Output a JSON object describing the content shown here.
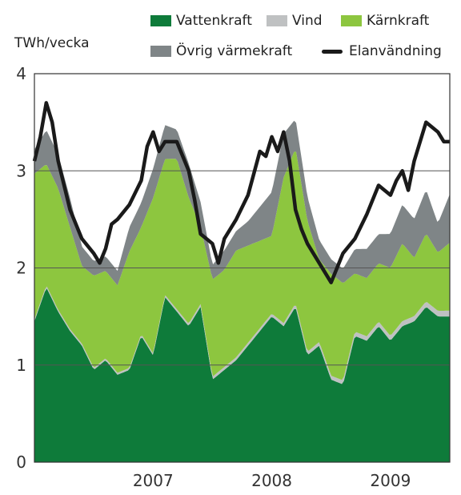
{
  "chart_data": {
    "type": "area",
    "ylabel": "TWh/vecka",
    "ylim": [
      0,
      4
    ],
    "yticks": [
      0,
      1,
      2,
      3,
      4
    ],
    "xlim": [
      2006.5,
      2010.0
    ],
    "xtick_labels": [
      {
        "x": 2007.0,
        "label": "2007"
      },
      {
        "x": 2008.0,
        "label": "2008"
      },
      {
        "x": 2009.0,
        "label": "2009"
      }
    ],
    "grid": "horizontal",
    "legend_position": "top",
    "series": [
      {
        "name": "Vattenkraft",
        "color": "#0e7b3a",
        "kind": "stacked-area",
        "x": [
          2006.5,
          2006.6,
          2006.7,
          2006.8,
          2006.9,
          2007.0,
          2007.1,
          2007.2,
          2007.3,
          2007.4,
          2007.5,
          2007.6,
          2007.7,
          2007.8,
          2007.9,
          2008.0,
          2008.1,
          2008.2,
          2008.3,
          2008.4,
          2008.5,
          2008.6,
          2008.7,
          2008.8,
          2008.9,
          2009.0,
          2009.1,
          2009.2,
          2009.3,
          2009.4,
          2009.5,
          2009.6,
          2009.7,
          2009.8,
          2009.9,
          2010.0
        ],
        "values": [
          1.45,
          1.8,
          1.55,
          1.35,
          1.2,
          0.95,
          1.05,
          0.9,
          0.95,
          1.3,
          1.1,
          1.7,
          1.55,
          1.4,
          1.6,
          0.85,
          0.95,
          1.05,
          1.2,
          1.35,
          1.5,
          1.4,
          1.6,
          1.1,
          1.2,
          0.85,
          0.8,
          1.3,
          1.25,
          1.4,
          1.25,
          1.4,
          1.45,
          1.6,
          1.5,
          1.5
        ]
      },
      {
        "name": "Vind",
        "color": "#bfc1c2",
        "kind": "stacked-area",
        "x": [
          2006.5,
          2007.0,
          2007.5,
          2008.0,
          2008.5,
          2009.0,
          2009.5,
          2010.0
        ],
        "values": [
          0.02,
          0.02,
          0.02,
          0.03,
          0.03,
          0.04,
          0.05,
          0.06
        ]
      },
      {
        "name": "Kärnkraft",
        "color": "#8dc63f",
        "kind": "stacked-area",
        "x": [
          2006.5,
          2006.6,
          2006.7,
          2006.8,
          2006.9,
          2007.0,
          2007.1,
          2007.2,
          2007.3,
          2007.4,
          2007.5,
          2007.6,
          2007.7,
          2007.8,
          2007.9,
          2008.0,
          2008.1,
          2008.2,
          2008.3,
          2008.4,
          2008.5,
          2008.6,
          2008.7,
          2008.8,
          2008.9,
          2009.0,
          2009.1,
          2009.2,
          2009.3,
          2009.4,
          2009.5,
          2009.6,
          2009.7,
          2009.8,
          2009.9,
          2010.0
        ],
        "values": [
          1.5,
          1.25,
          1.25,
          1.05,
          0.8,
          0.95,
          0.9,
          0.9,
          1.2,
          1.1,
          1.6,
          1.4,
          1.55,
          1.3,
          0.8,
          1.0,
          1.0,
          1.1,
          1.0,
          0.9,
          0.8,
          1.5,
          1.6,
          1.35,
          0.85,
          1.05,
          1.0,
          0.6,
          0.6,
          0.6,
          0.7,
          0.8,
          0.6,
          0.7,
          0.6,
          0.7
        ]
      },
      {
        "name": "Övrig värmekraft",
        "color": "#7f8587",
        "kind": "stacked-area",
        "x": [
          2006.5,
          2006.6,
          2006.7,
          2006.8,
          2006.9,
          2007.0,
          2007.1,
          2007.2,
          2007.3,
          2007.4,
          2007.5,
          2007.6,
          2007.7,
          2007.8,
          2007.9,
          2008.0,
          2008.1,
          2008.2,
          2008.3,
          2008.4,
          2008.5,
          2008.6,
          2008.7,
          2008.8,
          2008.9,
          2009.0,
          2009.1,
          2009.2,
          2009.3,
          2009.4,
          2009.5,
          2009.6,
          2009.7,
          2009.8,
          2009.9,
          2010.0
        ],
        "values": [
          0.25,
          0.35,
          0.35,
          0.3,
          0.2,
          0.15,
          0.15,
          0.15,
          0.25,
          0.25,
          0.3,
          0.35,
          0.3,
          0.35,
          0.25,
          0.15,
          0.2,
          0.2,
          0.25,
          0.35,
          0.45,
          0.45,
          0.3,
          0.25,
          0.2,
          0.15,
          0.15,
          0.25,
          0.3,
          0.3,
          0.35,
          0.4,
          0.4,
          0.45,
          0.3,
          0.5
        ]
      },
      {
        "name": "Elanvändning",
        "color": "#1a1a1a",
        "kind": "line",
        "x": [
          2006.5,
          2006.55,
          2006.6,
          2006.65,
          2006.7,
          2006.8,
          2006.9,
          2007.0,
          2007.05,
          2007.1,
          2007.15,
          2007.2,
          2007.3,
          2007.4,
          2007.45,
          2007.5,
          2007.55,
          2007.6,
          2007.7,
          2007.8,
          2007.85,
          2007.9,
          2007.95,
          2008.0,
          2008.05,
          2008.1,
          2008.2,
          2008.3,
          2008.4,
          2008.45,
          2008.5,
          2008.55,
          2008.6,
          2008.65,
          2008.7,
          2008.75,
          2008.8,
          2008.85,
          2008.9,
          2008.95,
          2009.0,
          2009.05,
          2009.1,
          2009.2,
          2009.3,
          2009.4,
          2009.45,
          2009.5,
          2009.55,
          2009.6,
          2009.65,
          2009.7,
          2009.75,
          2009.8,
          2009.85,
          2009.9,
          2009.95,
          2010.0
        ],
        "values": [
          3.1,
          3.35,
          3.7,
          3.5,
          3.1,
          2.6,
          2.3,
          2.15,
          2.05,
          2.2,
          2.45,
          2.5,
          2.65,
          2.9,
          3.25,
          3.4,
          3.2,
          3.3,
          3.3,
          3.0,
          2.7,
          2.35,
          2.3,
          2.25,
          2.05,
          2.3,
          2.5,
          2.75,
          3.2,
          3.15,
          3.35,
          3.2,
          3.4,
          3.1,
          2.6,
          2.4,
          2.25,
          2.15,
          2.05,
          1.95,
          1.85,
          2.0,
          2.15,
          2.3,
          2.55,
          2.85,
          2.8,
          2.75,
          2.9,
          3.0,
          2.8,
          3.1,
          3.3,
          3.5,
          3.45,
          3.4,
          3.3,
          3.3
        ]
      }
    ]
  }
}
